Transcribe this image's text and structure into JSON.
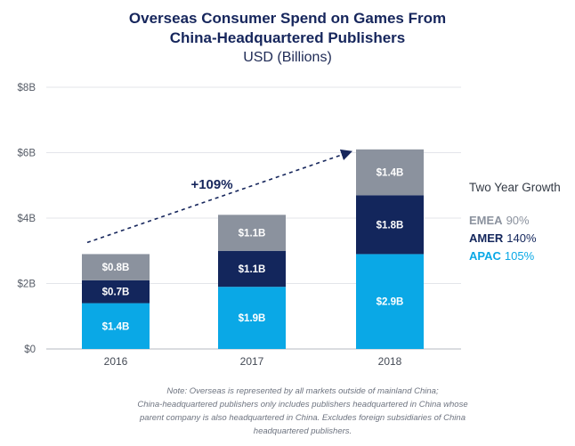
{
  "chart_data": {
    "type": "bar",
    "stacked": true,
    "title_lines": [
      "Overseas Consumer Spend on Games From",
      "China-Headquartered Publishers"
    ],
    "subtitle": "USD (Billions)",
    "categories": [
      "2016",
      "2017",
      "2018"
    ],
    "series": [
      {
        "name": "APAC",
        "values": [
          1.4,
          1.9,
          2.9
        ],
        "labels": [
          "$1.4B",
          "$1.9B",
          "$2.9B"
        ],
        "color": "#0aa8e6"
      },
      {
        "name": "AMER",
        "values": [
          0.7,
          1.1,
          1.8
        ],
        "labels": [
          "$0.7B",
          "$1.1B",
          "$1.8B"
        ],
        "color": "#13265c"
      },
      {
        "name": "EMEA",
        "values": [
          0.8,
          1.1,
          1.4
        ],
        "labels": [
          "$0.8B",
          "$1.1B",
          "$1.4B"
        ],
        "color": "#8b929e"
      }
    ],
    "ylim": [
      0,
      8
    ],
    "yticks": [
      0,
      2,
      4,
      6,
      8
    ],
    "ytick_labels": [
      "$0",
      "$2B",
      "$4B",
      "$6B",
      "$8B"
    ],
    "grid": true,
    "annotation": {
      "text": "+109%",
      "from_category": "2016",
      "to_category": "2018"
    },
    "growth_panel": {
      "title": "Two Year Growth",
      "rows": [
        {
          "name": "EMEA",
          "value": "90%",
          "color": "#8b929e"
        },
        {
          "name": "AMER",
          "value": "140%",
          "color": "#13265c"
        },
        {
          "name": "APAC",
          "value": "105%",
          "color": "#0aa8e6"
        }
      ]
    }
  },
  "note_lines": [
    "Note: Overseas is represented by all markets outside of mainland China;",
    "China-headquartered publishers only includes publishers headquartered in China whose",
    "parent company is also headquartered in China. Excludes foreign subsidiaries of China",
    "headquartered publishers."
  ]
}
